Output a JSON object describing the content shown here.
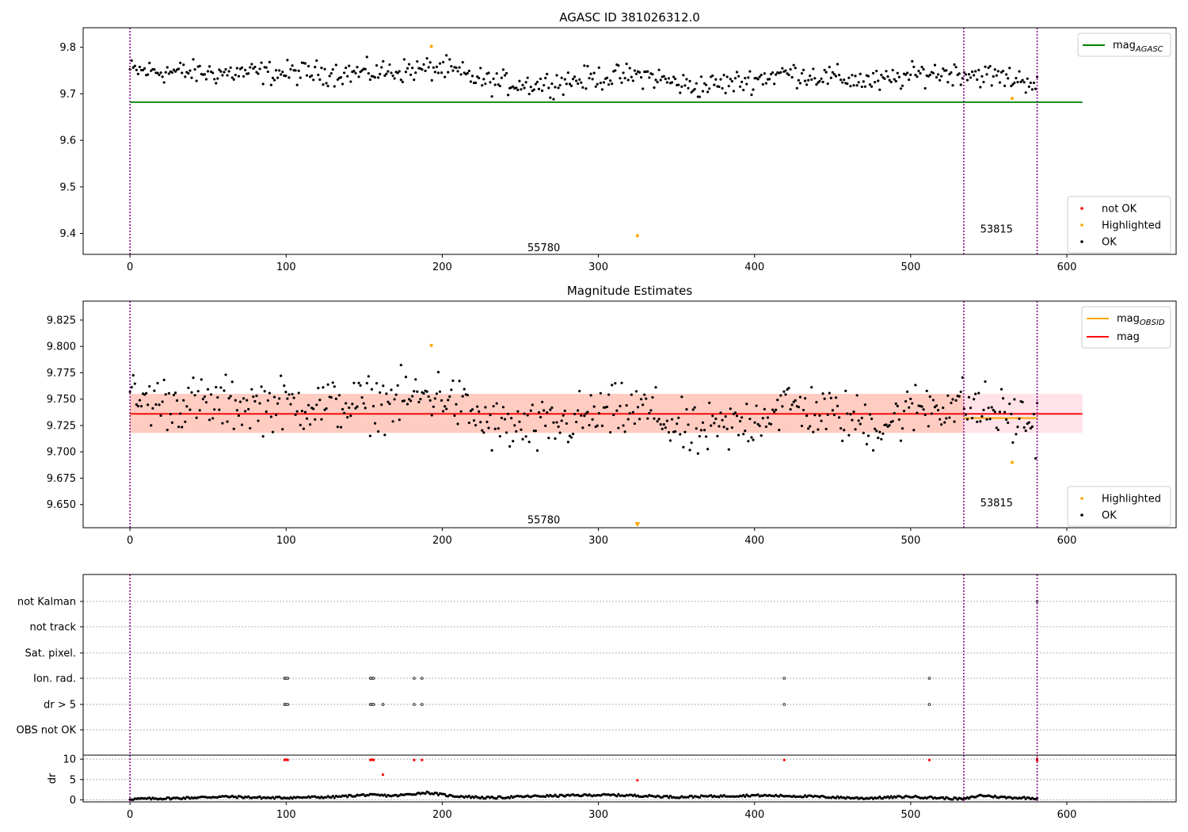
{
  "chart_data": [
    {
      "type": "scatter",
      "title": "AGASC ID 381026312.0",
      "xlim": [
        -30,
        670
      ],
      "ylim": [
        9.355,
        9.842
      ],
      "xticks": [
        0,
        100,
        200,
        300,
        400,
        500,
        600
      ],
      "yticks": [
        9.4,
        9.5,
        9.6,
        9.7,
        9.8
      ],
      "ytick_labels": [
        "9.4",
        "9.5",
        "9.6",
        "9.7",
        "9.8"
      ],
      "time_labels": [
        {
          "text": "55780",
          "x": 265,
          "y": 9.37
        },
        {
          "text": "53815",
          "x": 555,
          "y": 9.41
        }
      ],
      "vlines": [
        0,
        534,
        581
      ],
      "hline": {
        "name": "mag",
        "subscript": "AGASC",
        "value": 9.682,
        "xmin": 0,
        "xmax": 610,
        "color": "#008000"
      },
      "legend_lines": [
        {
          "name": "mag",
          "subscript": "AGASC",
          "color": "#008000"
        }
      ],
      "legend_points": [
        {
          "label": "not OK",
          "color": "#ff0000"
        },
        {
          "label": "Highlighted",
          "color": "#ffa500"
        },
        {
          "label": "OK",
          "color": "#000000"
        }
      ],
      "ok_series": {
        "x0": 0,
        "x1": 581,
        "count": 560,
        "baseline": [
          [
            0,
            9.75
          ],
          [
            50,
            9.745
          ],
          [
            100,
            9.745
          ],
          [
            150,
            9.745
          ],
          [
            200,
            9.755
          ],
          [
            230,
            9.725
          ],
          [
            260,
            9.72
          ],
          [
            300,
            9.735
          ],
          [
            330,
            9.74
          ],
          [
            360,
            9.715
          ],
          [
            390,
            9.725
          ],
          [
            420,
            9.745
          ],
          [
            450,
            9.735
          ],
          [
            480,
            9.725
          ],
          [
            510,
            9.745
          ],
          [
            534,
            9.745
          ],
          [
            560,
            9.735
          ],
          [
            581,
            9.725
          ]
        ],
        "spread": 0.028
      },
      "highlighted": [
        {
          "x": 193,
          "y": 9.802
        },
        {
          "x": 325,
          "y": 9.395
        },
        {
          "x": 565,
          "y": 9.69
        }
      ]
    },
    {
      "type": "scatter",
      "title": "Magnitude Estimates",
      "xlim": [
        -30,
        670
      ],
      "ylim": [
        9.628,
        9.843
      ],
      "xticks": [
        0,
        100,
        200,
        300,
        400,
        500,
        600
      ],
      "yticks": [
        9.65,
        9.675,
        9.7,
        9.725,
        9.75,
        9.775,
        9.8,
        9.825
      ],
      "ytick_labels": [
        "9.650",
        "9.675",
        "9.700",
        "9.725",
        "9.750",
        "9.775",
        "9.800",
        "9.825"
      ],
      "time_labels": [
        {
          "text": "55780",
          "x": 265,
          "y": 9.636
        },
        {
          "text": "53815",
          "x": 555,
          "y": 9.652
        }
      ],
      "vlines": [
        0,
        534,
        581
      ],
      "mag_line": {
        "name": "mag",
        "value": 9.736,
        "xmin": 0,
        "xmax": 610,
        "color": "#ff0000"
      },
      "mag_band": {
        "low": 9.718,
        "high": 9.755,
        "xmin": 0,
        "xmax": 610,
        "color": "#ffc0cb"
      },
      "obsid_band": {
        "low": 9.718,
        "high": 9.755,
        "xmin": 0,
        "xmax": 534,
        "color": "#ffa07a"
      },
      "obsid_segment": {
        "x0": 534,
        "x1": 581,
        "y": 9.732,
        "color": "#ffa500"
      },
      "legend_lines": [
        {
          "name": "mag",
          "subscript": "OBSID",
          "color": "#ffa500"
        },
        {
          "name": "mag",
          "subscript": "",
          "color": "#ff0000"
        }
      ],
      "legend_points": [
        {
          "label": "Highlighted",
          "color": "#ffa500"
        },
        {
          "label": "OK",
          "color": "#000000"
        }
      ],
      "highlighted": [
        {
          "x": 193,
          "y": 9.801
        },
        {
          "x": 565,
          "y": 9.69
        }
      ],
      "off_scale_marker": {
        "x": 325,
        "y": 9.631,
        "color": "#ffa500"
      }
    },
    {
      "type": "scatter",
      "title": "",
      "xlim": [
        -30,
        670
      ],
      "flag_rows": [
        "not Kalman",
        "not track",
        "Sat. pixel.",
        "Ion. rad.",
        "dr > 5",
        "OBS not OK"
      ],
      "flag_points": [
        {
          "row": "not Kalman",
          "x": [
            581
          ]
        },
        {
          "row": "Ion. rad.",
          "x": [
            99,
            100,
            101,
            154,
            155,
            156,
            182,
            187,
            419,
            512
          ]
        },
        {
          "row": "dr > 5",
          "x": [
            99,
            100,
            101,
            154,
            155,
            156,
            162,
            182,
            187,
            419,
            512
          ]
        }
      ],
      "vlines": [
        0,
        534,
        581
      ]
    },
    {
      "type": "scatter",
      "title": "",
      "ylabel": "dr",
      "xlim": [
        -30,
        670
      ],
      "ylim": [
        -0.5,
        11.0
      ],
      "xticks": [
        0,
        100,
        200,
        300,
        400,
        500,
        600
      ],
      "yticks": [
        0,
        5,
        10
      ],
      "ytick_labels": [
        "0",
        "5",
        "10"
      ],
      "vlines": [
        0,
        534,
        581
      ],
      "red_points": [
        {
          "x": 99,
          "y": 9.8
        },
        {
          "x": 100,
          "y": 9.9
        },
        {
          "x": 101,
          "y": 9.8
        },
        {
          "x": 154,
          "y": 9.8
        },
        {
          "x": 155,
          "y": 9.9
        },
        {
          "x": 156,
          "y": 9.8
        },
        {
          "x": 162,
          "y": 6.2
        },
        {
          "x": 182,
          "y": 9.8
        },
        {
          "x": 187,
          "y": 9.8
        },
        {
          "x": 325,
          "y": 4.8
        },
        {
          "x": 419,
          "y": 9.8
        },
        {
          "x": 512,
          "y": 9.8
        },
        {
          "x": 581,
          "y": 9.7
        },
        {
          "x": 581,
          "y": 10.1
        }
      ],
      "ok_series": {
        "x0": 0,
        "x1": 581,
        "count": 560,
        "baseline": [
          [
            0,
            0.2
          ],
          [
            30,
            0.4
          ],
          [
            60,
            0.8
          ],
          [
            90,
            0.5
          ],
          [
            130,
            0.7
          ],
          [
            150,
            1.2
          ],
          [
            170,
            1.0
          ],
          [
            190,
            1.8
          ],
          [
            205,
            1.0
          ],
          [
            230,
            0.5
          ],
          [
            260,
            0.9
          ],
          [
            300,
            1.2
          ],
          [
            320,
            1.1
          ],
          [
            350,
            0.7
          ],
          [
            400,
            1.1
          ],
          [
            430,
            0.9
          ],
          [
            470,
            0.4
          ],
          [
            500,
            0.8
          ],
          [
            534,
            0.2
          ],
          [
            545,
            1.1
          ],
          [
            560,
            0.6
          ],
          [
            581,
            0.4
          ]
        ],
        "spread": 0.25
      }
    }
  ]
}
